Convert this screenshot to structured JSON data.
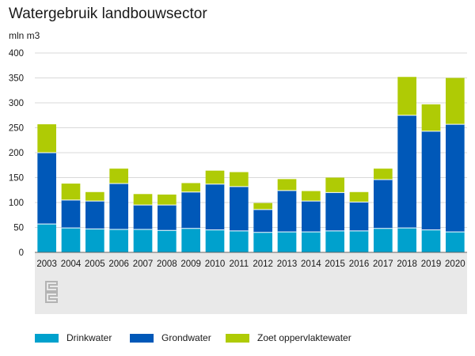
{
  "page": {
    "title": "Watergebruik landbouwsector",
    "unit_label": "mln m3",
    "logo_text": "cbs"
  },
  "colors": {
    "drinkwater": "#00a1cd",
    "grondwater": "#0058b8",
    "oppervlaktewater": "#afcb05",
    "grid": "#d9d9d9",
    "axis": "#666666",
    "footer_band": "#e9e9e9",
    "logo": "#b3b3b3"
  },
  "chart_data": {
    "type": "bar",
    "stacked": true,
    "title": "Watergebruik landbouwsector",
    "ylabel": "mln m3",
    "xlabel": "",
    "ylim": [
      0,
      400
    ],
    "yticks": [
      0,
      50,
      100,
      150,
      200,
      250,
      300,
      350,
      400
    ],
    "grid": true,
    "legend_position": "bottom",
    "categories": [
      "2003",
      "2004",
      "2005",
      "2006",
      "2007",
      "2008",
      "2009",
      "2010",
      "2011",
      "2012",
      "2013",
      "2014",
      "2015",
      "2016",
      "2017",
      "2018",
      "2019",
      "2020"
    ],
    "series": [
      {
        "name": "Drinkwater",
        "color": "#00a1cd",
        "values": [
          57,
          49,
          47,
          46,
          46,
          44,
          48,
          45,
          43,
          40,
          41,
          41,
          43,
          43,
          48,
          49,
          45,
          41
        ]
      },
      {
        "name": "Grondwater",
        "color": "#0058b8",
        "values": [
          143,
          56,
          56,
          92,
          49,
          51,
          73,
          92,
          89,
          46,
          83,
          62,
          77,
          58,
          98,
          226,
          198,
          216
        ]
      },
      {
        "name": "Zoet oppervlaktewater",
        "color": "#afcb05",
        "values": [
          57,
          33,
          18,
          30,
          22,
          21,
          18,
          27,
          29,
          13,
          23,
          20,
          30,
          20,
          22,
          77,
          54,
          93
        ]
      }
    ]
  },
  "legend": {
    "items": [
      {
        "label": "Drinkwater",
        "color": "#00a1cd"
      },
      {
        "label": "Grondwater",
        "color": "#0058b8"
      },
      {
        "label": "Zoet oppervlaktewater",
        "color": "#afcb05"
      }
    ]
  }
}
